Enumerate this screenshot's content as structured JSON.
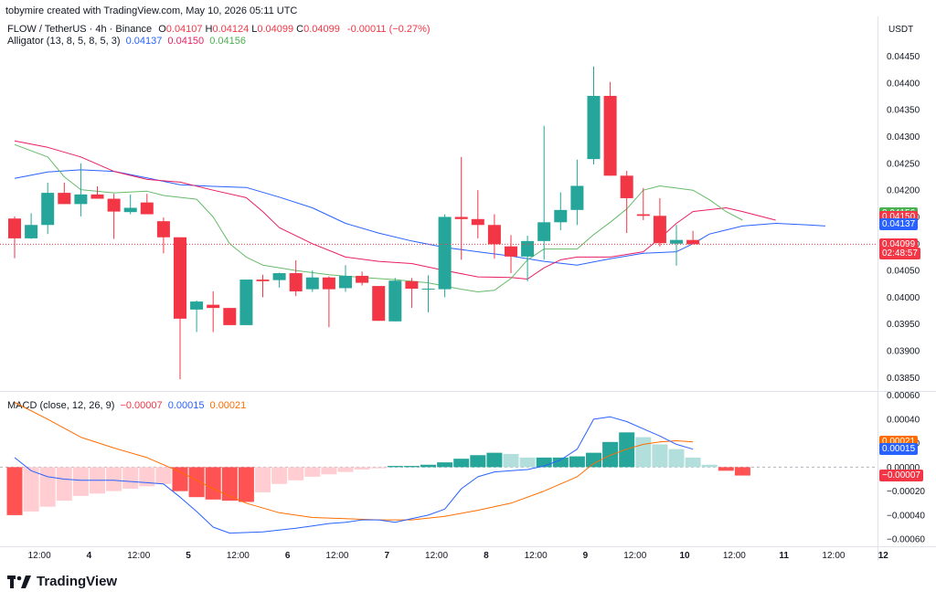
{
  "header": {
    "created_by": "tobymire created with TradingView.com, May 10, 2026 05:11 UTC",
    "symbol": "FLOW / TetherUS · 4h · Binance",
    "ohlc": [
      {
        "k": "O",
        "v": "0.04107",
        "color": "#f23645"
      },
      {
        "k": "H",
        "v": "0.04124",
        "color": "#f23645"
      },
      {
        "k": "L",
        "v": "0.04099",
        "color": "#f23645"
      },
      {
        "k": "C",
        "v": "0.04099",
        "color": "#f23645"
      }
    ],
    "change": "-0.00011 (−0.27%)",
    "alligator": "Alligator (13, 8, 5, 8, 5, 3)",
    "alligator_values": [
      "0.04137",
      "0.04150",
      "0.04156"
    ],
    "macd": "MACD (close, 12, 26, 9)",
    "macd_values": [
      "−0.00007",
      "0.00015",
      "0.00021"
    ],
    "currency": "USDT"
  },
  "colors": {
    "up": "#26a69a",
    "down": "#f23645",
    "jaw": "#2962ff",
    "teeth": "#e91e63",
    "lips": "#66bb6a",
    "macd": "#2962ff",
    "signal": "#ff6d00",
    "hist_up_strong": "#26a69a",
    "hist_up_weak": "#b2dfdb",
    "hist_down_strong": "#ff5252",
    "hist_down_weak": "#ffcdd2"
  },
  "price_labels": [
    {
      "text": "0.04156",
      "value": 0.04156,
      "color": "#4caf50"
    },
    {
      "text": "0.04150",
      "value": 0.0415,
      "color": "#f23645"
    },
    {
      "text": "0.04137",
      "value": 0.04137,
      "color": "#2962ff"
    },
    {
      "text": "0.04099",
      "value": 0.04099,
      "color": "#f23645"
    },
    {
      "text": "02:48:57",
      "value": 0.04082,
      "color": "#f23645"
    }
  ],
  "macd_labels": [
    {
      "text": "0.00021",
      "value": 0.00021,
      "color": "#ff6d00"
    },
    {
      "text": "0.00015",
      "value": 0.00015,
      "color": "#2962ff"
    },
    {
      "text": "−0.00007",
      "value": -7e-05,
      "color": "#f23645"
    }
  ],
  "logo": "TradingView",
  "chart_data": [
    {
      "type": "candlestick",
      "title": "FLOW / TetherUS · 4h · Binance",
      "ylim": [
        0.03825,
        0.0448
      ],
      "yticks": [
        "0.04450",
        "0.04400",
        "0.04350",
        "0.04300",
        "0.04250",
        "0.04200",
        "0.04150",
        "0.04100",
        "0.04050",
        "0.04000",
        "0.03950",
        "0.03900",
        "0.03850"
      ],
      "ytick_values": [
        0.0445,
        0.044,
        0.0435,
        0.043,
        0.0425,
        0.042,
        0.0415,
        0.041,
        0.0405,
        0.04,
        0.0395,
        0.039,
        0.0385
      ],
      "xticks": [
        {
          "label": "12:00",
          "i": 1.5
        },
        {
          "label": "4",
          "i": 4.5
        },
        {
          "label": "12:00",
          "i": 7.5
        },
        {
          "label": "5",
          "i": 10.5
        },
        {
          "label": "12:00",
          "i": 13.5
        },
        {
          "label": "6",
          "i": 16.5
        },
        {
          "label": "12:00",
          "i": 19.5
        },
        {
          "label": "7",
          "i": 22.5
        },
        {
          "label": "12:00",
          "i": 25.5
        },
        {
          "label": "8",
          "i": 28.5
        },
        {
          "label": "12:00",
          "i": 31.5
        },
        {
          "label": "9",
          "i": 34.5
        },
        {
          "label": "12:00",
          "i": 37.5
        },
        {
          "label": "10",
          "i": 40.5
        },
        {
          "label": "12:00",
          "i": 43.5
        },
        {
          "label": "11",
          "i": 46.5
        },
        {
          "label": "12:00",
          "i": 49.5
        },
        {
          "label": "12",
          "i": 52.5
        }
      ],
      "candles": [
        {
          "o": 0.04147,
          "h": 0.04151,
          "c": 0.0411,
          "l": 0.04073
        },
        {
          "o": 0.0411,
          "h": 0.04157,
          "c": 0.04135,
          "l": 0.04109
        },
        {
          "o": 0.04135,
          "h": 0.04214,
          "c": 0.04195,
          "l": 0.04118
        },
        {
          "o": 0.04195,
          "h": 0.04214,
          "c": 0.04174,
          "l": 0.04174
        },
        {
          "o": 0.04174,
          "h": 0.0425,
          "c": 0.04192,
          "l": 0.04151
        },
        {
          "o": 0.04192,
          "h": 0.04207,
          "c": 0.04184,
          "l": 0.04184
        },
        {
          "o": 0.04184,
          "h": 0.04193,
          "c": 0.0416,
          "l": 0.04109
        },
        {
          "o": 0.04159,
          "h": 0.04192,
          "c": 0.04167,
          "l": 0.04155
        },
        {
          "o": 0.04177,
          "h": 0.04193,
          "c": 0.04155,
          "l": 0.04155
        },
        {
          "o": 0.04142,
          "h": 0.04149,
          "c": 0.04112,
          "l": 0.04082
        },
        {
          "o": 0.04112,
          "h": 0.04112,
          "c": 0.0396,
          "l": 0.03847
        },
        {
          "o": 0.03977,
          "h": 0.03994,
          "c": 0.03992,
          "l": 0.03935
        },
        {
          "o": 0.03986,
          "h": 0.04011,
          "c": 0.0398,
          "l": 0.03935
        },
        {
          "o": 0.0398,
          "h": 0.0398,
          "c": 0.03948,
          "l": 0.03948
        },
        {
          "o": 0.03948,
          "h": 0.04033,
          "c": 0.04033,
          "l": 0.03948
        },
        {
          "o": 0.04033,
          "h": 0.04042,
          "c": 0.0403,
          "l": 0.04
        },
        {
          "o": 0.04032,
          "h": 0.04046,
          "c": 0.04045,
          "l": 0.04018
        },
        {
          "o": 0.04045,
          "h": 0.04069,
          "c": 0.04011,
          "l": 0.04002
        },
        {
          "o": 0.04015,
          "h": 0.0405,
          "c": 0.04037,
          "l": 0.0401
        },
        {
          "o": 0.04037,
          "h": 0.04039,
          "c": 0.04015,
          "l": 0.03944
        },
        {
          "o": 0.04017,
          "h": 0.0406,
          "c": 0.0404,
          "l": 0.0401
        },
        {
          "o": 0.0404,
          "h": 0.04048,
          "c": 0.04027,
          "l": 0.04022
        },
        {
          "o": 0.04021,
          "h": 0.04021,
          "c": 0.03956,
          "l": 0.03956
        },
        {
          "o": 0.03955,
          "h": 0.04036,
          "c": 0.04031,
          "l": 0.03955
        },
        {
          "o": 0.0403,
          "h": 0.04036,
          "c": 0.04016,
          "l": 0.0398
        },
        {
          "o": 0.04016,
          "h": 0.04041,
          "c": 0.04016,
          "l": 0.03972
        },
        {
          "o": 0.04015,
          "h": 0.04155,
          "c": 0.0415,
          "l": 0.04
        },
        {
          "o": 0.0415,
          "h": 0.04262,
          "c": 0.04146,
          "l": 0.0407
        },
        {
          "o": 0.04146,
          "h": 0.042,
          "c": 0.04135,
          "l": 0.0411
        },
        {
          "o": 0.04135,
          "h": 0.04155,
          "c": 0.04099,
          "l": 0.04072
        },
        {
          "o": 0.04095,
          "h": 0.04116,
          "c": 0.04076,
          "l": 0.04045
        },
        {
          "o": 0.04076,
          "h": 0.04115,
          "c": 0.04105,
          "l": 0.0403
        },
        {
          "o": 0.04105,
          "h": 0.0432,
          "c": 0.0414,
          "l": 0.0407
        },
        {
          "o": 0.0414,
          "h": 0.04196,
          "c": 0.04163,
          "l": 0.04125
        },
        {
          "o": 0.04163,
          "h": 0.04257,
          "c": 0.04208,
          "l": 0.04135
        },
        {
          "o": 0.04258,
          "h": 0.04431,
          "c": 0.04376,
          "l": 0.04248
        },
        {
          "o": 0.04376,
          "h": 0.04402,
          "c": 0.04227,
          "l": 0.04227
        },
        {
          "o": 0.04227,
          "h": 0.04236,
          "c": 0.04185,
          "l": 0.0412
        },
        {
          "o": 0.04155,
          "h": 0.04204,
          "c": 0.04152,
          "l": 0.04144
        },
        {
          "o": 0.04152,
          "h": 0.04185,
          "c": 0.04101,
          "l": 0.04095
        },
        {
          "o": 0.041,
          "h": 0.04135,
          "c": 0.04107,
          "l": 0.04059
        },
        {
          "o": 0.04107,
          "h": 0.04124,
          "c": 0.04099,
          "l": 0.04099
        }
      ],
      "alligator": {
        "jaw": [
          [
            0,
            0.04222
          ],
          [
            2,
            0.04234
          ],
          [
            4,
            0.04238
          ],
          [
            6,
            0.04235
          ],
          [
            8,
            0.04223
          ],
          [
            10,
            0.0421
          ],
          [
            12,
            0.04207
          ],
          [
            14,
            0.04205
          ],
          [
            16,
            0.04187
          ],
          [
            18,
            0.04167
          ],
          [
            20,
            0.04138
          ],
          [
            22,
            0.0412
          ],
          [
            24,
            0.04105
          ],
          [
            26,
            0.04093
          ],
          [
            28,
            0.04085
          ],
          [
            30,
            0.04077
          ],
          [
            32,
            0.04067
          ],
          [
            34,
            0.0406
          ],
          [
            36,
            0.04072
          ],
          [
            38,
            0.04082
          ],
          [
            40,
            0.04085
          ],
          [
            41,
            0.041
          ],
          [
            42,
            0.04118
          ],
          [
            44,
            0.04133
          ],
          [
            46,
            0.04138
          ],
          [
            48,
            0.04135
          ],
          [
            49,
            0.04133
          ]
        ],
        "teeth": [
          [
            0,
            0.04292
          ],
          [
            2,
            0.0428
          ],
          [
            4,
            0.04262
          ],
          [
            6,
            0.04235
          ],
          [
            8,
            0.0422
          ],
          [
            10,
            0.04215
          ],
          [
            12,
            0.042
          ],
          [
            14,
            0.04186
          ],
          [
            15,
            0.0416
          ],
          [
            16,
            0.0413
          ],
          [
            18,
            0.041
          ],
          [
            20,
            0.04075
          ],
          [
            22,
            0.04067
          ],
          [
            24,
            0.04063
          ],
          [
            26,
            0.0405
          ],
          [
            28,
            0.04038
          ],
          [
            30,
            0.04037
          ],
          [
            31,
            0.04034
          ],
          [
            32,
            0.04055
          ],
          [
            33,
            0.0407
          ],
          [
            34,
            0.04075
          ],
          [
            36,
            0.04075
          ],
          [
            38,
            0.04085
          ],
          [
            39,
            0.0411
          ],
          [
            40,
            0.04138
          ],
          [
            41,
            0.0416
          ],
          [
            43,
            0.04167
          ],
          [
            44,
            0.0416
          ],
          [
            46,
            0.04144
          ]
        ],
        "lips": [
          [
            0,
            0.04285
          ],
          [
            2,
            0.04262
          ],
          [
            3,
            0.04225
          ],
          [
            4,
            0.04201
          ],
          [
            6,
            0.04195
          ],
          [
            8,
            0.04198
          ],
          [
            9,
            0.0419
          ],
          [
            11,
            0.04183
          ],
          [
            12,
            0.0415
          ],
          [
            13,
            0.041
          ],
          [
            14,
            0.04075
          ],
          [
            15,
            0.0406
          ],
          [
            17,
            0.0405
          ],
          [
            19,
            0.04042
          ],
          [
            21,
            0.04037
          ],
          [
            23,
            0.04033
          ],
          [
            25,
            0.04027
          ],
          [
            27,
            0.04015
          ],
          [
            28,
            0.0401
          ],
          [
            29,
            0.04013
          ],
          [
            30,
            0.04035
          ],
          [
            31,
            0.0407
          ],
          [
            32,
            0.0409
          ],
          [
            34,
            0.0409
          ],
          [
            35,
            0.04117
          ],
          [
            36,
            0.0414
          ],
          [
            37,
            0.04165
          ],
          [
            38,
            0.042
          ],
          [
            39,
            0.04208
          ],
          [
            41,
            0.042
          ],
          [
            42,
            0.04182
          ],
          [
            43,
            0.0416
          ],
          [
            44,
            0.04144
          ]
        ]
      },
      "last_price": 0.04099
    },
    {
      "type": "bar+line",
      "title": "MACD (close, 12, 26, 9)",
      "ylim": [
        -0.00066,
        0.00062
      ],
      "yticks": [
        "0.00060",
        "0.00040",
        "0.00020",
        "0.00000",
        "−0.00020",
        "−0.00040",
        "−0.00060"
      ],
      "ytick_values": [
        0.0006,
        0.0004,
        0.0002,
        0,
        -0.0002,
        -0.0004,
        -0.0006
      ],
      "histogram": [
        -0.0004,
        -0.00037,
        -0.00033,
        -0.00028,
        -0.00024,
        -0.00022,
        -0.0002,
        -0.00018,
        -0.00016,
        -0.00014,
        -0.0002,
        -0.00025,
        -0.00027,
        -0.00028,
        -0.00029,
        -0.00021,
        -0.00014,
        -0.00011,
        -8e-05,
        -6e-05,
        -4e-05,
        -2e-05,
        -1e-05,
        1e-05,
        1e-05,
        2e-05,
        4e-05,
        7e-05,
        0.0001,
        0.00012,
        0.00011,
        8e-05,
        8e-05,
        8e-05,
        9e-05,
        0.00012,
        0.00021,
        0.00029,
        0.00025,
        0.00019,
        0.00015,
        8e-05,
        2e-05,
        -3e-05,
        -7e-05
      ],
      "macd": [
        [
          0,
          8e-05
        ],
        [
          1,
          -3e-05
        ],
        [
          2,
          -8e-05
        ],
        [
          3,
          -0.0001
        ],
        [
          4,
          -0.00011
        ],
        [
          6,
          -0.00011
        ],
        [
          8,
          -0.00013
        ],
        [
          9,
          -0.00014
        ],
        [
          10,
          -0.00025
        ],
        [
          11,
          -0.00037
        ],
        [
          12,
          -0.0005
        ],
        [
          13,
          -0.00055
        ],
        [
          15,
          -0.00054
        ],
        [
          17,
          -0.00051
        ],
        [
          18,
          -0.00049
        ],
        [
          19,
          -0.00047
        ],
        [
          20,
          -0.00046
        ],
        [
          21,
          -0.00044
        ],
        [
          22,
          -0.00044
        ],
        [
          23,
          -0.00046
        ],
        [
          24,
          -0.00043
        ],
        [
          25,
          -0.0004
        ],
        [
          26,
          -0.00035
        ],
        [
          27,
          -0.00018
        ],
        [
          28,
          -8e-05
        ],
        [
          29,
          -4e-05
        ],
        [
          30,
          -3e-05
        ],
        [
          31,
          -2e-05
        ],
        [
          32,
          1e-05
        ],
        [
          33,
          6e-05
        ],
        [
          34,
          0.00015
        ],
        [
          35,
          0.0004
        ],
        [
          36,
          0.00042
        ],
        [
          37,
          0.00038
        ],
        [
          38,
          0.00032
        ],
        [
          39,
          0.00026
        ],
        [
          40,
          0.00019
        ],
        [
          41,
          0.00015
        ]
      ],
      "signal": [
        [
          0,
          0.00054
        ],
        [
          2,
          0.0004
        ],
        [
          4,
          0.00025
        ],
        [
          6,
          0.00016
        ],
        [
          8,
          8e-05
        ],
        [
          10,
          -4e-05
        ],
        [
          12,
          -0.00018
        ],
        [
          14,
          -0.0003
        ],
        [
          16,
          -0.00038
        ],
        [
          18,
          -0.00042
        ],
        [
          20,
          -0.00043
        ],
        [
          22,
          -0.00044
        ],
        [
          24,
          -0.00044
        ],
        [
          26,
          -0.00041
        ],
        [
          28,
          -0.00036
        ],
        [
          30,
          -0.0003
        ],
        [
          32,
          -0.0002
        ],
        [
          34,
          -8e-05
        ],
        [
          35,
          3e-05
        ],
        [
          36,
          0.0001
        ],
        [
          37,
          0.00015
        ],
        [
          38,
          0.00019
        ],
        [
          39,
          0.00021
        ],
        [
          40,
          0.00022
        ],
        [
          41,
          0.00021
        ]
      ]
    }
  ]
}
